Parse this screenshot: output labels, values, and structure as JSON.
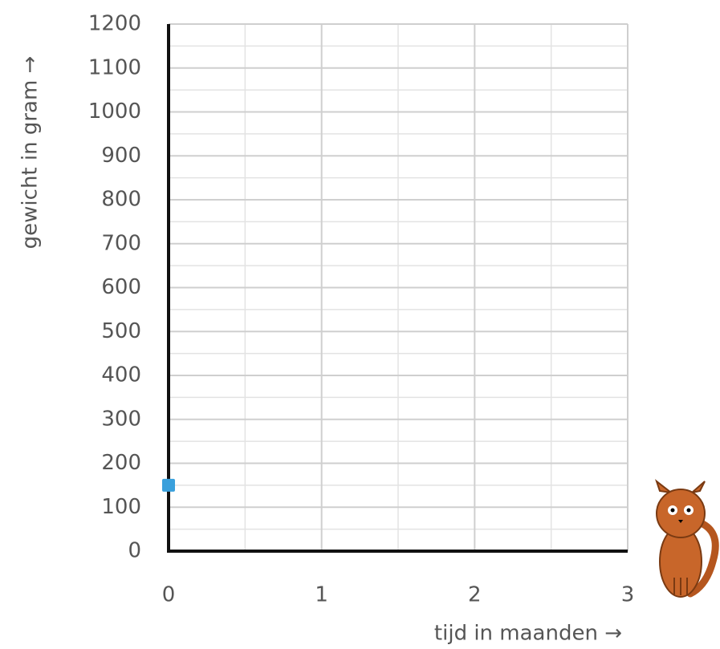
{
  "chart_data": {
    "type": "scatter",
    "x_label": "tijd in maanden →",
    "y_label": "gewicht in gram →",
    "x": [
      0
    ],
    "values": [
      150
    ],
    "color": "#3aa0dc",
    "xlim": [
      0,
      3
    ],
    "xticks": [
      0,
      1,
      2,
      3
    ],
    "minor_xticks": [
      0.5,
      1.5,
      2.5
    ],
    "ylim": [
      0,
      1200
    ],
    "yticks": [
      0,
      100,
      200,
      300,
      400,
      500,
      600,
      700,
      800,
      900,
      1000,
      1100,
      1200
    ],
    "minor_yticks": [
      50,
      150,
      250,
      350,
      450,
      550,
      650,
      750,
      850,
      950,
      1050,
      1150
    ],
    "grid": true
  }
}
